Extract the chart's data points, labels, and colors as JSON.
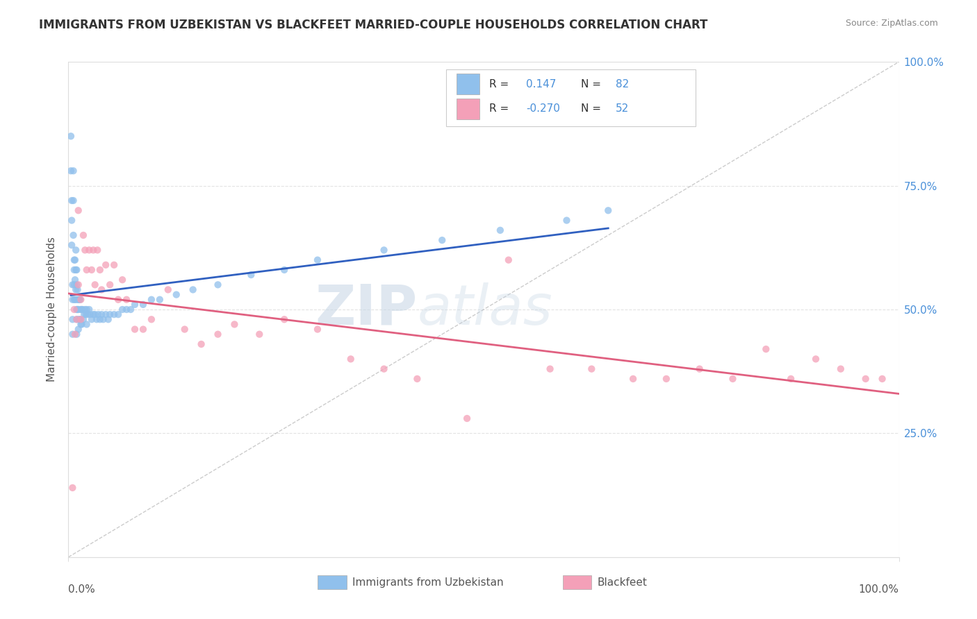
{
  "title": "IMMIGRANTS FROM UZBEKISTAN VS BLACKFEET MARRIED-COUPLE HOUSEHOLDS CORRELATION CHART",
  "source": "Source: ZipAtlas.com",
  "ylabel": "Married-couple Households",
  "R1": 0.147,
  "N1": 82,
  "R2": -0.27,
  "N2": 52,
  "color1": "#90C0EC",
  "color2": "#F4A0B8",
  "color1_line": "#3060C0",
  "color2_line": "#E06080",
  "watermark_zip": "ZIP",
  "watermark_atlas": "atlas",
  "background_color": "#ffffff",
  "grid_color": "#dddddd",
  "grid_dashed_color": "#dddddd",
  "title_color": "#333333",
  "source_color": "#888888",
  "legend1_label": "Immigrants from Uzbekistan",
  "legend2_label": "Blackfeet",
  "blue_x": [
    0.003,
    0.003,
    0.004,
    0.004,
    0.004,
    0.005,
    0.005,
    0.005,
    0.005,
    0.006,
    0.006,
    0.006,
    0.007,
    0.007,
    0.007,
    0.007,
    0.008,
    0.008,
    0.008,
    0.009,
    0.009,
    0.009,
    0.01,
    0.01,
    0.01,
    0.01,
    0.01,
    0.01,
    0.011,
    0.011,
    0.012,
    0.012,
    0.012,
    0.013,
    0.013,
    0.014,
    0.014,
    0.015,
    0.015,
    0.016,
    0.016,
    0.017,
    0.018,
    0.019,
    0.02,
    0.021,
    0.022,
    0.022,
    0.023,
    0.025,
    0.026,
    0.028,
    0.03,
    0.032,
    0.034,
    0.036,
    0.038,
    0.04,
    0.042,
    0.045,
    0.048,
    0.05,
    0.055,
    0.06,
    0.065,
    0.07,
    0.075,
    0.08,
    0.09,
    0.1,
    0.11,
    0.13,
    0.15,
    0.18,
    0.22,
    0.26,
    0.3,
    0.38,
    0.45,
    0.52,
    0.6,
    0.65
  ],
  "blue_y": [
    0.85,
    0.78,
    0.72,
    0.68,
    0.63,
    0.55,
    0.52,
    0.48,
    0.45,
    0.78,
    0.72,
    0.65,
    0.6,
    0.58,
    0.55,
    0.52,
    0.6,
    0.56,
    0.52,
    0.62,
    0.58,
    0.54,
    0.58,
    0.55,
    0.52,
    0.5,
    0.48,
    0.45,
    0.54,
    0.5,
    0.52,
    0.5,
    0.46,
    0.52,
    0.48,
    0.52,
    0.48,
    0.5,
    0.47,
    0.5,
    0.47,
    0.5,
    0.48,
    0.49,
    0.5,
    0.49,
    0.5,
    0.47,
    0.49,
    0.5,
    0.49,
    0.48,
    0.49,
    0.49,
    0.48,
    0.49,
    0.48,
    0.49,
    0.48,
    0.49,
    0.48,
    0.49,
    0.49,
    0.49,
    0.5,
    0.5,
    0.5,
    0.51,
    0.51,
    0.52,
    0.52,
    0.53,
    0.54,
    0.55,
    0.57,
    0.58,
    0.6,
    0.62,
    0.64,
    0.66,
    0.68,
    0.7
  ],
  "pink_x": [
    0.005,
    0.007,
    0.008,
    0.01,
    0.012,
    0.012,
    0.015,
    0.015,
    0.018,
    0.02,
    0.022,
    0.025,
    0.028,
    0.03,
    0.032,
    0.035,
    0.038,
    0.04,
    0.045,
    0.05,
    0.055,
    0.06,
    0.065,
    0.07,
    0.08,
    0.09,
    0.1,
    0.12,
    0.14,
    0.16,
    0.18,
    0.2,
    0.23,
    0.26,
    0.3,
    0.34,
    0.38,
    0.42,
    0.48,
    0.53,
    0.58,
    0.63,
    0.68,
    0.72,
    0.76,
    0.8,
    0.84,
    0.87,
    0.9,
    0.93,
    0.96,
    0.98
  ],
  "pink_y": [
    0.14,
    0.5,
    0.45,
    0.48,
    0.7,
    0.55,
    0.52,
    0.48,
    0.65,
    0.62,
    0.58,
    0.62,
    0.58,
    0.62,
    0.55,
    0.62,
    0.58,
    0.54,
    0.59,
    0.55,
    0.59,
    0.52,
    0.56,
    0.52,
    0.46,
    0.46,
    0.48,
    0.54,
    0.46,
    0.43,
    0.45,
    0.47,
    0.45,
    0.48,
    0.46,
    0.4,
    0.38,
    0.36,
    0.28,
    0.6,
    0.38,
    0.38,
    0.36,
    0.36,
    0.38,
    0.36,
    0.42,
    0.36,
    0.4,
    0.38,
    0.36,
    0.36
  ]
}
